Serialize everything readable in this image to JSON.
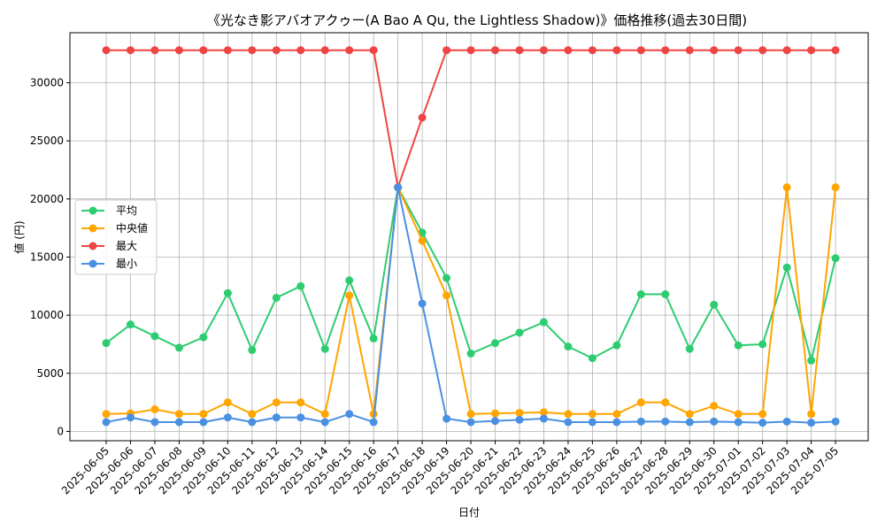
{
  "chart_data": {
    "type": "line",
    "title": "《光なき影アバオアクゥー(A Bao A Qu, the Lightless Shadow)》価格推移(過去30日間)",
    "xlabel": "日付",
    "ylabel": "値 (円)",
    "ylim": [
      -800,
      34300
    ],
    "yticks": [
      0,
      5000,
      10000,
      15000,
      20000,
      25000,
      30000
    ],
    "grid": true,
    "legend_position": "center-left",
    "categories": [
      "2025-06-05",
      "2025-06-06",
      "2025-06-07",
      "2025-06-08",
      "2025-06-09",
      "2025-06-10",
      "2025-06-11",
      "2025-06-12",
      "2025-06-13",
      "2025-06-14",
      "2025-06-15",
      "2025-06-16",
      "2025-06-17",
      "2025-06-18",
      "2025-06-19",
      "2025-06-20",
      "2025-06-21",
      "2025-06-22",
      "2025-06-23",
      "2025-06-24",
      "2025-06-25",
      "2025-06-26",
      "2025-06-27",
      "2025-06-28",
      "2025-06-29",
      "2025-06-30",
      "2025-07-01",
      "2025-07-02",
      "2025-07-03",
      "2025-07-04",
      "2025-07-05"
    ],
    "series": [
      {
        "name": "平均",
        "color": "#2ecc71",
        "values": [
          7600,
          9200,
          8200,
          7200,
          8100,
          11900,
          7000,
          11500,
          12500,
          7100,
          13000,
          8000,
          21000,
          17100,
          13200,
          6700,
          7600,
          8500,
          9400,
          7300,
          6300,
          7400,
          11800,
          11800,
          7100,
          10900,
          7400,
          7500,
          14100,
          6100,
          14900
        ]
      },
      {
        "name": "中央値",
        "color": "#ffa500",
        "values": [
          1500,
          1550,
          1900,
          1500,
          1500,
          2500,
          1500,
          2500,
          2500,
          1500,
          11700,
          1500,
          21000,
          16400,
          11700,
          1500,
          1550,
          1600,
          1650,
          1500,
          1500,
          1500,
          2500,
          2500,
          1500,
          2200,
          1500,
          1500,
          21000,
          1500,
          21000
        ]
      },
      {
        "name": "最大",
        "color": "#ef4444",
        "values": [
          32800,
          32800,
          32800,
          32800,
          32800,
          32800,
          32800,
          32800,
          32800,
          32800,
          32800,
          32800,
          21000,
          27000,
          32800,
          32800,
          32800,
          32800,
          32800,
          32800,
          32800,
          32800,
          32800,
          32800,
          32800,
          32800,
          32800,
          32800,
          32800,
          32800,
          32800
        ]
      },
      {
        "name": "最小",
        "color": "#4a90e2",
        "values": [
          800,
          1200,
          800,
          800,
          800,
          1200,
          800,
          1200,
          1200,
          800,
          1500,
          800,
          21000,
          11000,
          1100,
          800,
          900,
          1000,
          1100,
          800,
          800,
          800,
          850,
          850,
          800,
          850,
          800,
          750,
          850,
          750,
          850
        ]
      }
    ]
  }
}
